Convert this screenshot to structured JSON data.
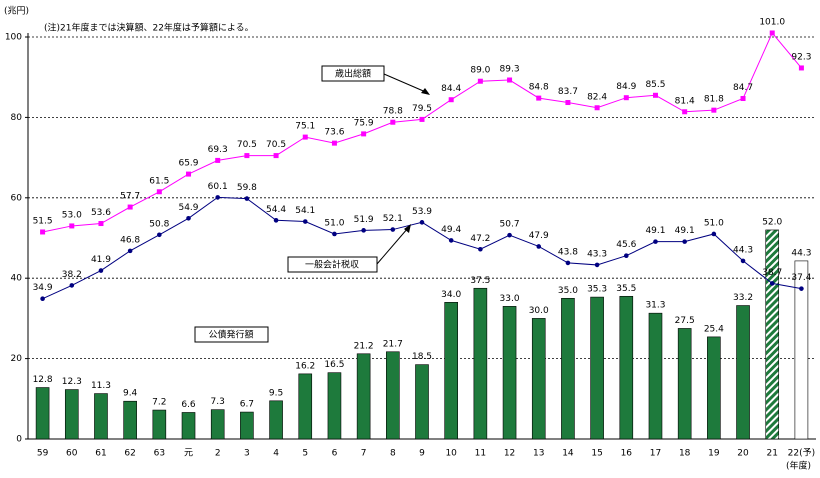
{
  "chart_data": {
    "type": "combo",
    "y_label": "(兆円)",
    "x_label": "(年度)",
    "note": "(注)21年度までは決算額、22年度は予算額による。",
    "categories": [
      "59",
      "60",
      "61",
      "62",
      "63",
      "元",
      "2",
      "3",
      "4",
      "5",
      "6",
      "7",
      "8",
      "9",
      "10",
      "11",
      "12",
      "13",
      "14",
      "15",
      "16",
      "17",
      "18",
      "19",
      "20",
      "21",
      "22(予)"
    ],
    "ylim": [
      0,
      100
    ],
    "yticks": [
      0,
      20,
      40,
      60,
      80,
      100
    ],
    "grid": true,
    "series": [
      {
        "name": "公債発行額",
        "type": "bar",
        "color": "#1e7a3c",
        "values": [
          12.8,
          12.3,
          11.3,
          9.4,
          7.2,
          6.6,
          7.3,
          6.7,
          9.5,
          16.2,
          16.5,
          21.2,
          21.7,
          18.5,
          34.0,
          37.5,
          33.0,
          30.0,
          35.0,
          35.3,
          35.5,
          31.3,
          27.5,
          25.4,
          33.2,
          52.0,
          44.3
        ],
        "value_labels": [
          "12.8",
          "12.3",
          "11.3",
          "9.4",
          "7.2",
          "6.6",
          "7.3",
          "6.7",
          "9.5",
          "16.2",
          "16.5",
          "21.2",
          "21.7",
          "18.5",
          "34.0",
          "37.5",
          "33.0",
          "30.0",
          "35.0",
          "35.3",
          "35.5",
          "31.3",
          "27.5",
          "25.4",
          "33.2",
          "52.0",
          "44.3"
        ],
        "patterns": [
          "solid",
          "solid",
          "solid",
          "solid",
          "solid",
          "solid",
          "solid",
          "solid",
          "solid",
          "solid",
          "solid",
          "solid",
          "solid",
          "solid",
          "solid",
          "solid",
          "solid",
          "solid",
          "solid",
          "solid",
          "solid",
          "solid",
          "solid",
          "solid",
          "solid",
          "hatched",
          "outline"
        ]
      },
      {
        "name": "歳出総額",
        "type": "line",
        "marker": "square",
        "color": "#ff00ff",
        "values": [
          51.5,
          53.0,
          53.6,
          57.7,
          61.5,
          65.9,
          69.3,
          70.5,
          70.5,
          75.1,
          73.6,
          75.9,
          78.8,
          79.5,
          84.4,
          89.0,
          89.3,
          84.8,
          83.7,
          82.4,
          84.9,
          85.5,
          81.4,
          81.8,
          84.7,
          101.0,
          92.3
        ],
        "value_labels": [
          "51.5",
          "53.0",
          "53.6",
          "57.7",
          "61.5",
          "65.9",
          "69.3",
          "70.5",
          "70.5",
          "75.1",
          "73.6",
          "75.9",
          "78.8",
          "79.5",
          "84.4",
          "89.0",
          "89.3",
          "84.8",
          "83.7",
          "82.4",
          "84.9",
          "85.5",
          "81.4",
          "81.8",
          "84.7",
          "101.0",
          "92.3"
        ]
      },
      {
        "name": "一般会計税収",
        "type": "line",
        "marker": "circle",
        "color": "#000080",
        "values": [
          34.9,
          38.2,
          41.9,
          46.8,
          50.8,
          54.9,
          60.1,
          59.8,
          54.4,
          54.1,
          51.0,
          51.9,
          52.1,
          53.9,
          49.4,
          47.2,
          50.7,
          47.9,
          43.8,
          43.3,
          45.6,
          49.1,
          49.1,
          51.0,
          44.3,
          38.7,
          37.4
        ],
        "value_labels": [
          "34.9",
          "38.2",
          "41.9",
          "46.8",
          "50.8",
          "54.9",
          "60.1",
          "59.8",
          "54.4",
          "54.1",
          "51.0",
          "51.9",
          "52.1",
          "53.9",
          "49.4",
          "47.2",
          "50.7",
          "47.9",
          "43.8",
          "43.3",
          "45.6",
          "49.1",
          "49.1",
          "51.0",
          "44.3",
          "38.7",
          "37.4"
        ]
      }
    ]
  }
}
